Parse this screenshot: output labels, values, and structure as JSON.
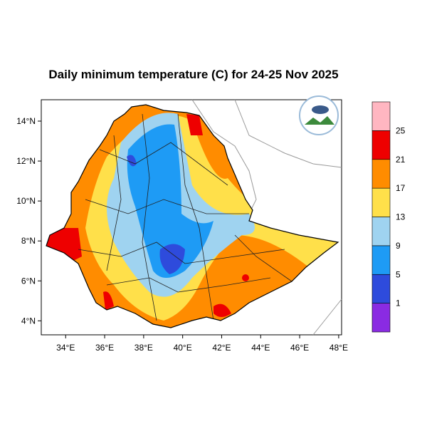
{
  "map": {
    "title": "Daily minimum temperature (C) for 24-25 Nov 2025",
    "xlim": [
      32.75,
      48.15
    ],
    "ylim": [
      3.3,
      15.07
    ],
    "xticks": [
      {
        "value": 34,
        "label": "34°E"
      },
      {
        "value": 36,
        "label": "36°E"
      },
      {
        "value": 38,
        "label": "38°E"
      },
      {
        "value": 40,
        "label": "40°E"
      },
      {
        "value": 42,
        "label": "42°E"
      },
      {
        "value": 44,
        "label": "44°E"
      },
      {
        "value": 46,
        "label": "46°E"
      },
      {
        "value": 48,
        "label": "48°E"
      }
    ],
    "yticks": [
      {
        "value": 4,
        "label": "4°N"
      },
      {
        "value": 6,
        "label": "6°N"
      },
      {
        "value": 8,
        "label": "8°N"
      },
      {
        "value": 10,
        "label": "10°N"
      },
      {
        "value": 12,
        "label": "12°N"
      },
      {
        "value": 14,
        "label": "14°N"
      }
    ],
    "colorbar": {
      "levels": [
        1,
        5,
        9,
        13,
        17,
        21,
        25
      ],
      "colors": [
        "#8a2be2",
        "#2e4bdc",
        "#1e9bf5",
        "#9fd3f0",
        "#ffe04a",
        "#ff8c00",
        "#ee0000",
        "#ffb6c1"
      ]
    }
  }
}
